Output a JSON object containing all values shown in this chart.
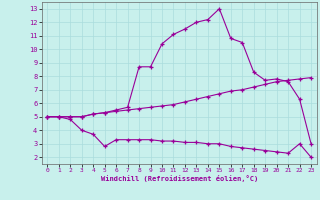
{
  "xlabel": "Windchill (Refroidissement éolien,°C)",
  "background_color": "#c8f0ec",
  "line_color": "#990099",
  "grid_color": "#aadddd",
  "xlim": [
    -0.5,
    23.5
  ],
  "ylim": [
    1.5,
    13.5
  ],
  "xticks": [
    0,
    1,
    2,
    3,
    4,
    5,
    6,
    7,
    8,
    9,
    10,
    11,
    12,
    13,
    14,
    15,
    16,
    17,
    18,
    19,
    20,
    21,
    22,
    23
  ],
  "yticks": [
    2,
    3,
    4,
    5,
    6,
    7,
    8,
    9,
    10,
    11,
    12,
    13
  ],
  "line1_x": [
    0,
    1,
    2,
    3,
    4,
    5,
    6,
    7,
    8,
    9,
    10,
    11,
    12,
    13,
    14,
    15,
    16,
    17,
    18,
    19,
    20,
    21,
    22,
    23
  ],
  "line1_y": [
    5.0,
    5.0,
    4.8,
    4.0,
    3.7,
    2.8,
    3.3,
    3.3,
    3.3,
    3.3,
    3.2,
    3.2,
    3.1,
    3.1,
    3.0,
    3.0,
    2.8,
    2.7,
    2.6,
    2.5,
    2.4,
    2.3,
    3.0,
    2.0
  ],
  "line2_x": [
    0,
    1,
    2,
    3,
    4,
    5,
    6,
    7,
    8,
    9,
    10,
    11,
    12,
    13,
    14,
    15,
    16,
    17,
    18,
    19,
    20,
    21,
    22,
    23
  ],
  "line2_y": [
    5.0,
    5.0,
    5.0,
    5.0,
    5.2,
    5.3,
    5.4,
    5.5,
    5.6,
    5.7,
    5.8,
    5.9,
    6.1,
    6.3,
    6.5,
    6.7,
    6.9,
    7.0,
    7.2,
    7.4,
    7.6,
    7.7,
    7.8,
    7.9
  ],
  "line3_x": [
    0,
    1,
    2,
    3,
    4,
    5,
    6,
    7,
    8,
    9,
    10,
    11,
    12,
    13,
    14,
    15,
    16,
    17,
    18,
    19,
    20,
    21,
    22,
    23
  ],
  "line3_y": [
    5.0,
    5.0,
    5.0,
    5.0,
    5.2,
    5.3,
    5.5,
    5.7,
    8.7,
    8.7,
    10.4,
    11.1,
    11.5,
    12.0,
    12.2,
    13.0,
    10.8,
    10.5,
    8.3,
    7.7,
    7.8,
    7.6,
    6.3,
    3.0
  ]
}
